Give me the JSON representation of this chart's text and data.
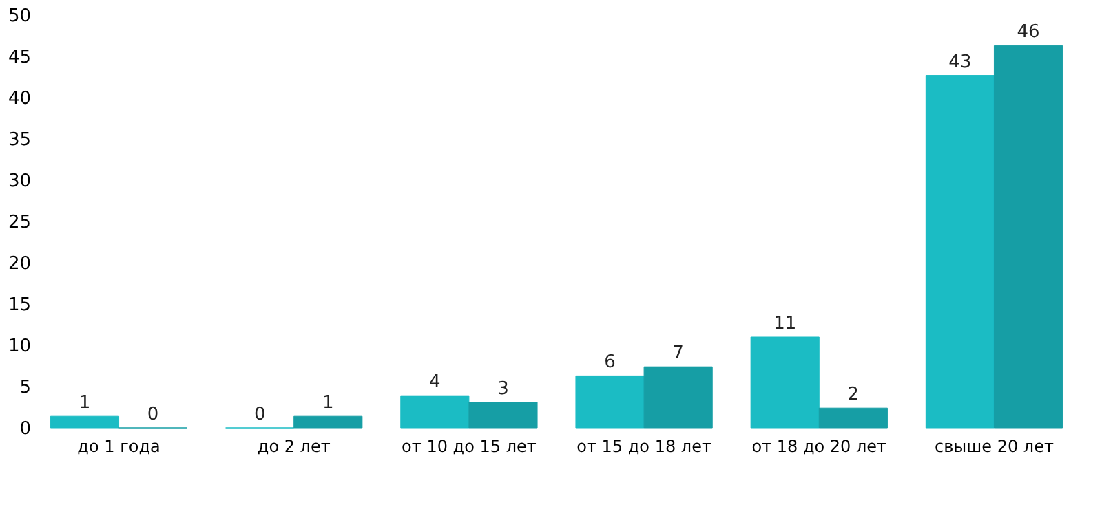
{
  "chart_data": {
    "type": "bar",
    "categories": [
      "до 1 года",
      "до 2 лет",
      "от 10 до 15 лет",
      "от 15 до 18 лет",
      "от 18 до 20 лет",
      "свыше 20 лет"
    ],
    "series": [
      {
        "color": "#1bbcc4",
        "values": [
          1.4,
          0,
          3.9,
          6.3,
          11,
          42.7
        ],
        "value_labels": [
          "1",
          "0",
          "4",
          "6",
          "11",
          "43"
        ]
      },
      {
        "color": "#169ea5",
        "values": [
          0,
          1.4,
          3.1,
          7.4,
          2.4,
          46.3
        ],
        "value_labels": [
          "0",
          "1",
          "3",
          "7",
          "2",
          "46"
        ]
      }
    ],
    "ylim": [
      0,
      50
    ],
    "yticks": [
      0,
      5,
      10,
      15,
      20,
      25,
      30,
      35,
      40,
      45,
      50
    ],
    "grid": false,
    "legend": false
  }
}
